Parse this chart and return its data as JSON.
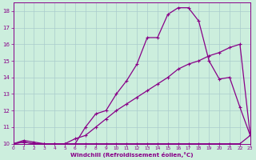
{
  "xlabel": "Windchill (Refroidissement éolien,°C)",
  "background_color": "#cceedd",
  "grid_color": "#aacccc",
  "line_color": "#880088",
  "xlim": [
    0,
    23
  ],
  "ylim": [
    10,
    18.5
  ],
  "xticks": [
    0,
    1,
    2,
    3,
    4,
    5,
    6,
    7,
    8,
    9,
    10,
    11,
    12,
    13,
    14,
    15,
    16,
    17,
    18,
    19,
    20,
    21,
    22,
    23
  ],
  "yticks": [
    10,
    11,
    12,
    13,
    14,
    15,
    16,
    17,
    18
  ],
  "line1_x": [
    0,
    1,
    2,
    3,
    4,
    5,
    6,
    7,
    8,
    9,
    10,
    11,
    12,
    13,
    14,
    15,
    16,
    17,
    18,
    19,
    20,
    21,
    22,
    23
  ],
  "line1_y": [
    10,
    10.1,
    10.0,
    10.0,
    10.0,
    10.0,
    10.0,
    10.0,
    10.0,
    10.0,
    10.0,
    10.0,
    10.0,
    10.0,
    10.0,
    10.0,
    10.0,
    10.0,
    10.0,
    10.0,
    10.0,
    10.0,
    10.0,
    10.5
  ],
  "line2_x": [
    0,
    1,
    2,
    3,
    4,
    5,
    6,
    7,
    8,
    9,
    10,
    11,
    12,
    13,
    14,
    15,
    16,
    17,
    18,
    19,
    20,
    21,
    22,
    23
  ],
  "line2_y": [
    10,
    10.2,
    10.1,
    10.0,
    10.0,
    10.0,
    10.3,
    10.5,
    11.0,
    11.5,
    12.0,
    12.4,
    12.8,
    13.2,
    13.6,
    14.0,
    14.5,
    14.8,
    15.0,
    15.3,
    15.5,
    15.8,
    16.0,
    10.5
  ],
  "line3_x": [
    0,
    1,
    2,
    3,
    4,
    5,
    6,
    7,
    8,
    9,
    10,
    11,
    12,
    13,
    14,
    15,
    16,
    17,
    18,
    19,
    20,
    21,
    22,
    23
  ],
  "line3_y": [
    10,
    10.1,
    10.0,
    10.0,
    10.0,
    10.0,
    10.0,
    11.0,
    11.8,
    12.0,
    13.0,
    13.8,
    14.8,
    16.4,
    16.4,
    17.8,
    18.2,
    18.2,
    17.4,
    15.0,
    13.9,
    14.0,
    12.2,
    10.5
  ]
}
